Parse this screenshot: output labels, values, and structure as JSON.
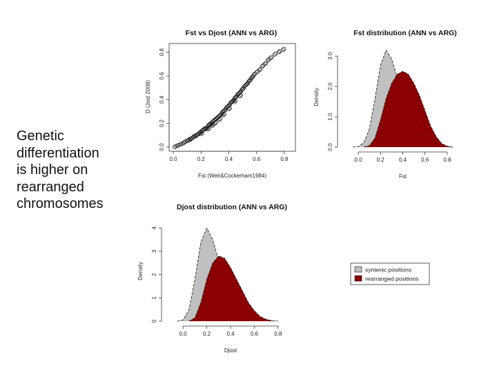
{
  "slide": {
    "text_lines": [
      "Genetic",
      "differentiation",
      "is higher on",
      "rearranged",
      "chromosomes"
    ]
  },
  "colors": {
    "syntenic": "#c0c0c0",
    "rearranged": "#8b0000",
    "axis": "#333333"
  },
  "legend": {
    "items": [
      {
        "label": "syntenic positions",
        "color": "#c0c0c0"
      },
      {
        "label": "rearranged positions",
        "color": "#8b0000"
      }
    ]
  },
  "chart_data": [
    {
      "type": "scatter",
      "title": "Fst vs Djost (ANN vs ARG)",
      "xlabel": "Fst (Weir&Cockerham1984)",
      "ylabel": "D (Jost 2008)",
      "xlim": [
        0.0,
        0.85
      ],
      "ylim": [
        0.0,
        0.85
      ],
      "xticks": [
        "0.0",
        "0.2",
        "0.4",
        "0.6",
        "0.8"
      ],
      "yticks": [
        "0.0",
        "0.2",
        "0.4",
        "0.6",
        "0.8"
      ],
      "points": [
        [
          0.01,
          0.0
        ],
        [
          0.03,
          0.01
        ],
        [
          0.05,
          0.02
        ],
        [
          0.07,
          0.03
        ],
        [
          0.08,
          0.04
        ],
        [
          0.1,
          0.05
        ],
        [
          0.11,
          0.06
        ],
        [
          0.12,
          0.06
        ],
        [
          0.13,
          0.07
        ],
        [
          0.14,
          0.08
        ],
        [
          0.15,
          0.09
        ],
        [
          0.16,
          0.09
        ],
        [
          0.17,
          0.1
        ],
        [
          0.18,
          0.11
        ],
        [
          0.19,
          0.12
        ],
        [
          0.2,
          0.13
        ],
        [
          0.2,
          0.11
        ],
        [
          0.21,
          0.14
        ],
        [
          0.22,
          0.15
        ],
        [
          0.23,
          0.15
        ],
        [
          0.24,
          0.16
        ],
        [
          0.25,
          0.18
        ],
        [
          0.25,
          0.15
        ],
        [
          0.26,
          0.19
        ],
        [
          0.27,
          0.19
        ],
        [
          0.28,
          0.21
        ],
        [
          0.28,
          0.18
        ],
        [
          0.29,
          0.22
        ],
        [
          0.3,
          0.23
        ],
        [
          0.3,
          0.2
        ],
        [
          0.31,
          0.24
        ],
        [
          0.32,
          0.25
        ],
        [
          0.33,
          0.26
        ],
        [
          0.33,
          0.23
        ],
        [
          0.34,
          0.27
        ],
        [
          0.35,
          0.29
        ],
        [
          0.36,
          0.3
        ],
        [
          0.36,
          0.27
        ],
        [
          0.37,
          0.31
        ],
        [
          0.38,
          0.33
        ],
        [
          0.39,
          0.34
        ],
        [
          0.4,
          0.35
        ],
        [
          0.4,
          0.32
        ],
        [
          0.41,
          0.37
        ],
        [
          0.42,
          0.38
        ],
        [
          0.43,
          0.39
        ],
        [
          0.44,
          0.41
        ],
        [
          0.44,
          0.38
        ],
        [
          0.45,
          0.42
        ],
        [
          0.46,
          0.44
        ],
        [
          0.47,
          0.45
        ],
        [
          0.48,
          0.46
        ],
        [
          0.48,
          0.43
        ],
        [
          0.49,
          0.48
        ],
        [
          0.5,
          0.49
        ],
        [
          0.51,
          0.51
        ],
        [
          0.52,
          0.52
        ],
        [
          0.53,
          0.53
        ],
        [
          0.54,
          0.55
        ],
        [
          0.55,
          0.56
        ],
        [
          0.56,
          0.58
        ],
        [
          0.57,
          0.59
        ],
        [
          0.58,
          0.61
        ],
        [
          0.6,
          0.63
        ],
        [
          0.62,
          0.65
        ],
        [
          0.64,
          0.68
        ],
        [
          0.66,
          0.7
        ],
        [
          0.68,
          0.73
        ],
        [
          0.7,
          0.75
        ],
        [
          0.73,
          0.78
        ],
        [
          0.76,
          0.8
        ],
        [
          0.79,
          0.82
        ]
      ]
    },
    {
      "type": "area",
      "title": "Fst distribution (ANN vs ARG)",
      "xlabel": "Fst",
      "ylabel": "Density",
      "xlim": [
        -0.1,
        0.9
      ],
      "ylim": [
        0.0,
        3.3
      ],
      "xticks": [
        "0.0",
        "0.2",
        "0.4",
        "0.6",
        "0.8"
      ],
      "yticks": [
        "0.0",
        "1.0",
        "2.0",
        "3.0"
      ],
      "series": [
        {
          "name": "syntenic positions",
          "x": [
            -0.05,
            0.0,
            0.05,
            0.1,
            0.15,
            0.2,
            0.25,
            0.3,
            0.35,
            0.4,
            0.45,
            0.5,
            0.55,
            0.6,
            0.65,
            0.7,
            0.75,
            0.8,
            0.85
          ],
          "y": [
            0.0,
            0.02,
            0.15,
            0.6,
            1.6,
            2.7,
            3.2,
            2.9,
            2.3,
            1.7,
            1.2,
            0.8,
            0.5,
            0.3,
            0.15,
            0.07,
            0.03,
            0.01,
            0.0
          ]
        },
        {
          "name": "rearranged positions",
          "x": [
            0.05,
            0.1,
            0.15,
            0.2,
            0.25,
            0.3,
            0.35,
            0.4,
            0.45,
            0.5,
            0.55,
            0.6,
            0.65,
            0.7,
            0.75,
            0.8,
            0.85
          ],
          "y": [
            0.0,
            0.05,
            0.3,
            0.9,
            1.6,
            2.1,
            2.4,
            2.5,
            2.4,
            2.1,
            1.7,
            1.2,
            0.7,
            0.35,
            0.12,
            0.03,
            0.0
          ]
        }
      ]
    },
    {
      "type": "area",
      "title": "Djost distribution (ANN vs ARG)",
      "xlabel": "Djost",
      "ylabel": "Density",
      "xlim": [
        -0.1,
        0.9
      ],
      "ylim": [
        0.0,
        4.3
      ],
      "xticks": [
        "0.0",
        "0.2",
        "0.4",
        "0.6",
        "0.8"
      ],
      "yticks": [
        "0",
        "1",
        "2",
        "3",
        "4"
      ],
      "series": [
        {
          "name": "syntenic positions",
          "x": [
            -0.05,
            0.0,
            0.05,
            0.1,
            0.15,
            0.2,
            0.25,
            0.3,
            0.35,
            0.4,
            0.45,
            0.5,
            0.55,
            0.6,
            0.65,
            0.7,
            0.75
          ],
          "y": [
            0.0,
            0.05,
            0.5,
            1.8,
            3.4,
            4.0,
            3.5,
            2.6,
            1.8,
            1.2,
            0.8,
            0.5,
            0.3,
            0.15,
            0.07,
            0.02,
            0.0
          ]
        },
        {
          "name": "rearranged positions",
          "x": [
            0.05,
            0.1,
            0.15,
            0.2,
            0.25,
            0.3,
            0.35,
            0.4,
            0.45,
            0.5,
            0.55,
            0.6,
            0.65,
            0.7,
            0.75,
            0.8
          ],
          "y": [
            0.0,
            0.15,
            0.8,
            1.8,
            2.5,
            2.8,
            2.7,
            2.3,
            1.8,
            1.3,
            0.8,
            0.45,
            0.2,
            0.08,
            0.02,
            0.0
          ]
        }
      ]
    }
  ]
}
